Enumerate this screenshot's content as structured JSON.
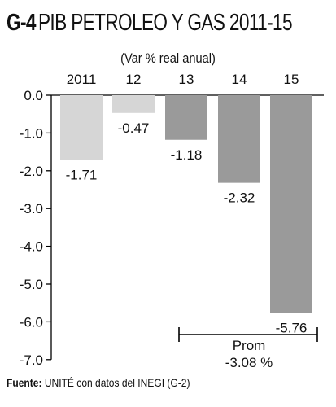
{
  "header": {
    "code": "G-4",
    "title": "PIB PETROLEO Y GAS  2011-15"
  },
  "footer": {
    "label": "Fuente:",
    "text": " UNITÉ con datos del INEGI (G-2)"
  },
  "chart_data": {
    "type": "bar",
    "title": "G-4 PIB PETROLEO Y GAS  2011-15",
    "subtitle": "(Var % real anual)",
    "categories": [
      "2011",
      "12",
      "13",
      "14",
      "15"
    ],
    "values": [
      -1.71,
      -0.47,
      -1.18,
      -2.32,
      -5.76
    ],
    "value_labels": [
      "-1.71",
      "-0.47",
      "-1.18",
      "-2.32",
      "-5.76"
    ],
    "bar_colors": [
      "#d6d6d6",
      "#d6d6d6",
      "#9a9a9a",
      "#9a9a9a",
      "#9a9a9a"
    ],
    "yticks": [
      "0.0",
      "-1.0",
      "-2.0",
      "-3.0",
      "-4.0",
      "-5.0",
      "-6.0",
      "-7.0"
    ],
    "ylim": [
      -7,
      0
    ],
    "xlabel": "",
    "ylabel": "",
    "grid": false,
    "annotation": {
      "label": "Prom",
      "value": "-3.08 %",
      "span_categories": [
        "13",
        "15"
      ]
    }
  }
}
